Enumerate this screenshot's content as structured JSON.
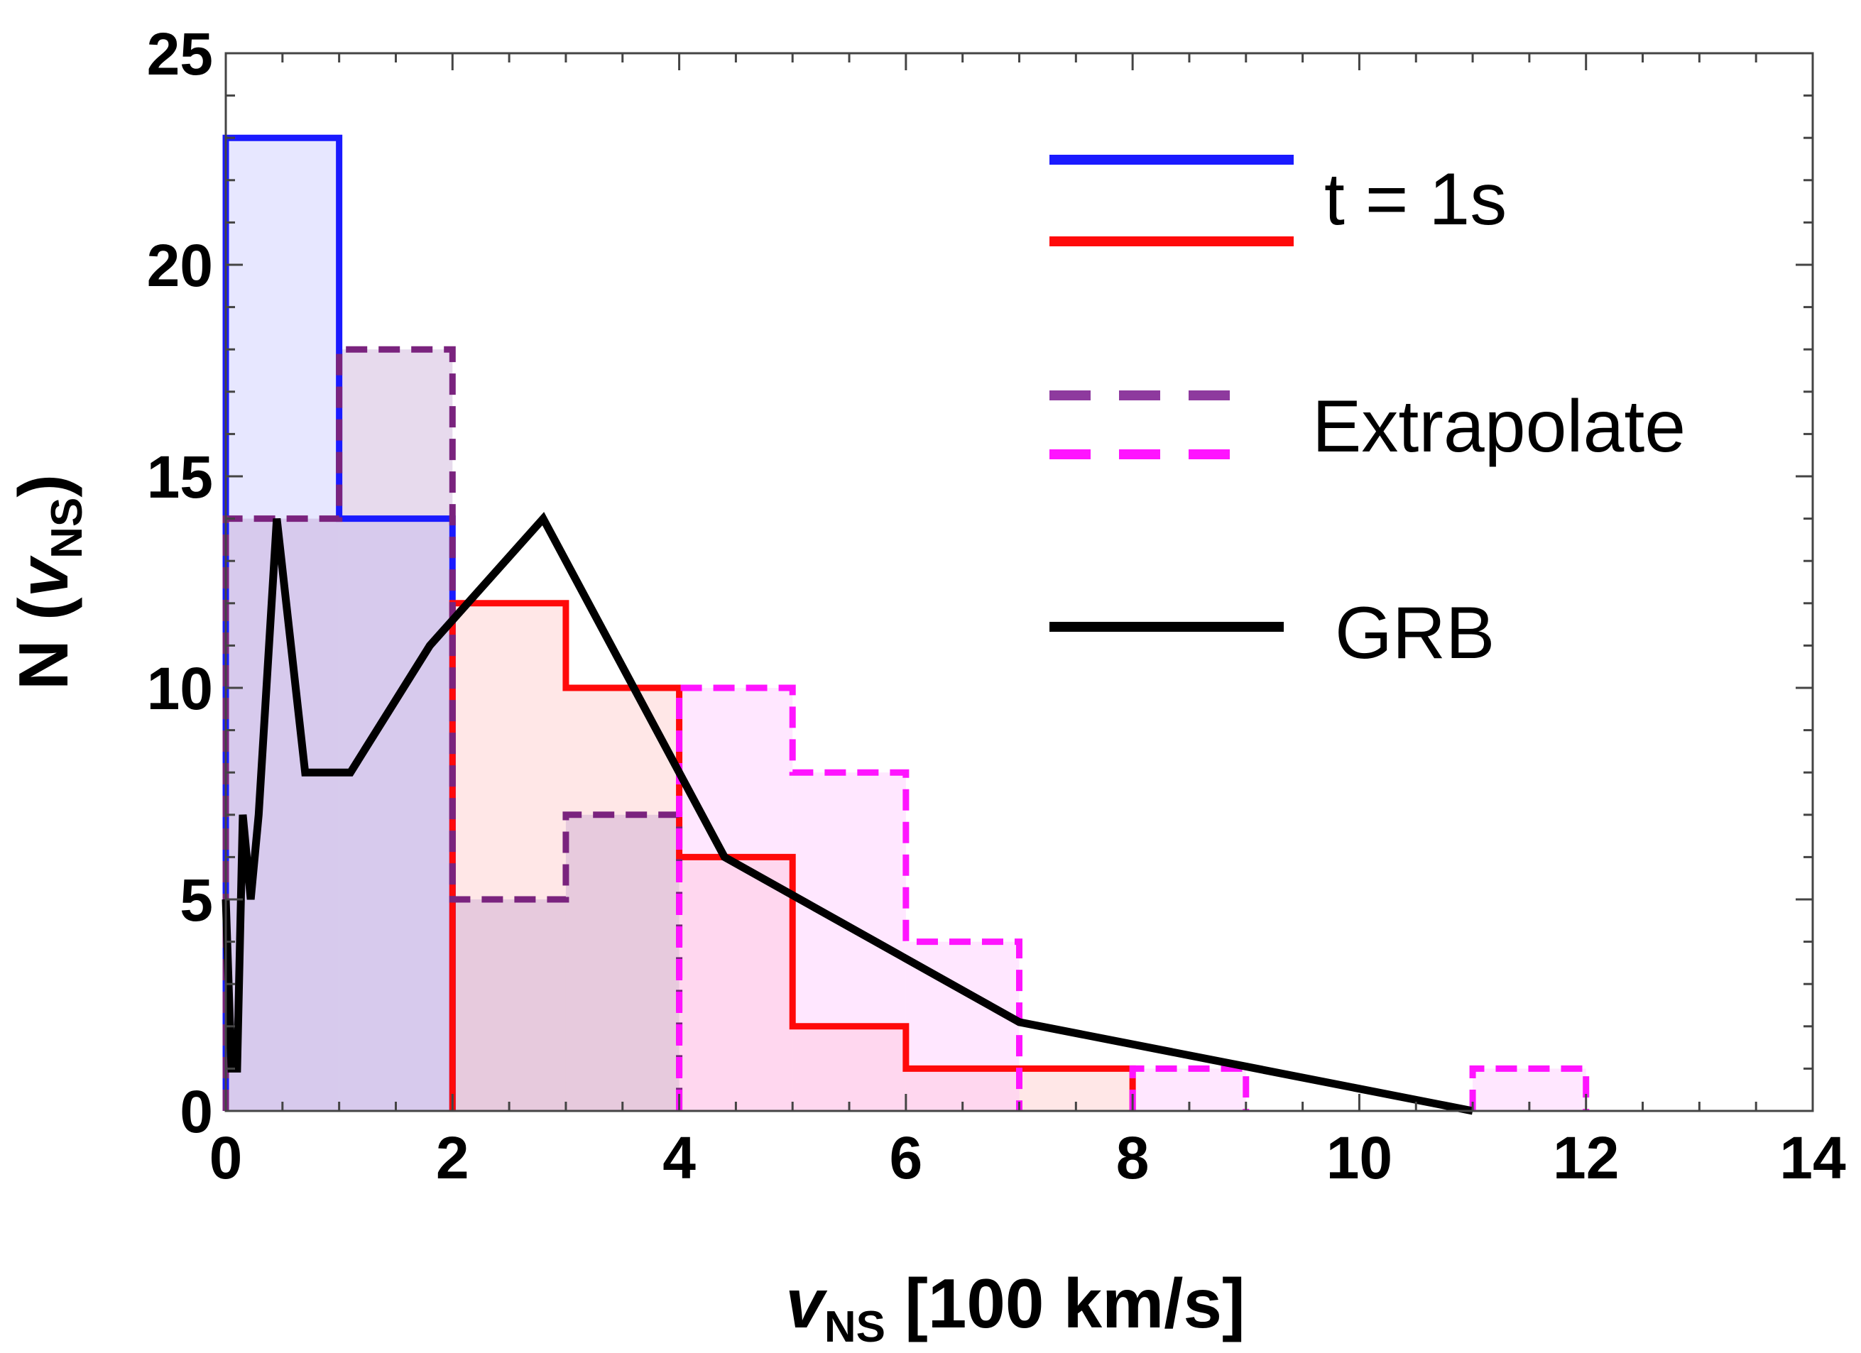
{
  "chart_data": {
    "type": "histogram",
    "xlabel": {
      "main": "v",
      "sub": "NS",
      "tail": " [100 km/s]"
    },
    "ylabel": {
      "head": "N (",
      "main": "v",
      "sub": "NS",
      "tail": ")"
    },
    "xlim": [
      0,
      14
    ],
    "ylim": [
      0,
      25
    ],
    "x_major_ticks": [
      0,
      2,
      4,
      6,
      8,
      10,
      12,
      14
    ],
    "x_tick_labels": [
      "0",
      "2",
      "4",
      "6",
      "8",
      "10",
      "12",
      "14"
    ],
    "y_major_ticks": [
      0,
      5,
      10,
      15,
      20,
      25
    ],
    "y_tick_labels": [
      "0",
      "5",
      "10",
      "15",
      "20",
      "25"
    ],
    "bin_edges": [
      0,
      1,
      2,
      3,
      4,
      5,
      6,
      7,
      8,
      9,
      10,
      11,
      12,
      13
    ],
    "series": [
      {
        "name": "t = 1s (blue)",
        "style": "solid",
        "color": "#1a1aff",
        "fill": "#b4b4ff",
        "counts": [
          23,
          14,
          0,
          0,
          0,
          0,
          0,
          0,
          0,
          0,
          0,
          0,
          0
        ]
      },
      {
        "name": "t = 1s (red)",
        "style": "solid",
        "color": "#ff0a0a",
        "fill": "#ffb4b4",
        "counts": [
          0,
          0,
          12,
          10,
          6,
          2,
          1,
          1,
          0,
          0,
          0,
          0,
          0
        ]
      },
      {
        "name": "Extrapolate (purple)",
        "style": "dashed",
        "color": "#7a237e",
        "fill": "#b48cc8",
        "counts": [
          14,
          18,
          5,
          7,
          0,
          0,
          0,
          0,
          0,
          0,
          0,
          0,
          0
        ]
      },
      {
        "name": "Extrapolate (magenta)",
        "style": "dashed",
        "color": "#ff14ff",
        "fill": "#ffb4ff",
        "counts": [
          0,
          0,
          0,
          0,
          10,
          8,
          4,
          0,
          1,
          0,
          0,
          1,
          0
        ]
      }
    ],
    "line": {
      "name": "GRB",
      "color": "#000000",
      "x": [
        0,
        0.05,
        0.1,
        0.15,
        0.22,
        0.29,
        0.45,
        0.7,
        1.1,
        1.8,
        2.8,
        4.4,
        7.0,
        11.0
      ],
      "y": [
        5,
        1,
        1,
        7,
        5,
        7,
        14,
        8,
        8,
        11,
        14,
        6,
        2.1,
        0
      ]
    },
    "legend": {
      "position": "top-right",
      "entries": [
        {
          "label": "t = 1s",
          "swatches": [
            {
              "color": "#1a1aff",
              "style": "solid"
            },
            {
              "color": "#ff0a0a",
              "style": "solid"
            }
          ]
        },
        {
          "label": "Extrapolate",
          "swatches": [
            {
              "color": "#8e3a9e",
              "style": "dashed"
            },
            {
              "color": "#ff14ff",
              "style": "dashed"
            }
          ]
        },
        {
          "label": "GRB",
          "swatches": [
            {
              "color": "#000000",
              "style": "solid"
            }
          ]
        }
      ]
    }
  }
}
